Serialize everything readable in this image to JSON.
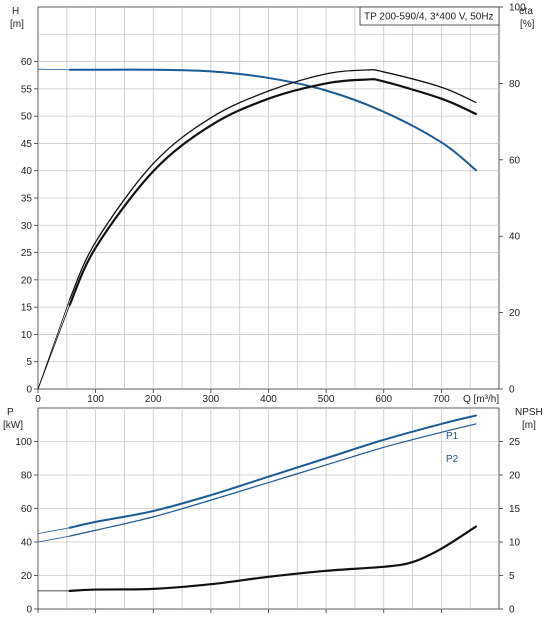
{
  "title": "TP 200-590/4, 3*400 V, 50Hz",
  "colors": {
    "blue": "#1a5a96",
    "black": "#111111"
  },
  "chart_data": [
    {
      "type": "line",
      "panel": "head-efficiency",
      "xlabel": "Q [m³/h]",
      "ylabel_left": [
        "H",
        "[m]"
      ],
      "ylabel_right": [
        "eta",
        "[%]"
      ],
      "xlim": [
        0,
        800
      ],
      "ylim_left": [
        0,
        70
      ],
      "ylim_right": [
        0,
        100
      ],
      "x_ticks": [
        0,
        100,
        200,
        300,
        400,
        500,
        600,
        700
      ],
      "y_ticks_left": [
        0,
        5,
        10,
        15,
        20,
        25,
        30,
        35,
        40,
        45,
        50,
        55,
        60
      ],
      "y_ticks_right": [
        0,
        20,
        40,
        60,
        80,
        100
      ],
      "grid": true,
      "series": [
        {
          "axis": "left",
          "color": "blue",
          "width": 2,
          "x": [
            0,
            55,
            100,
            200,
            300,
            400,
            500,
            600,
            700,
            760
          ],
          "y": [
            58.6,
            58.5,
            58.5,
            58.5,
            58.2,
            57,
            54.7,
            50.8,
            45.2,
            40.1
          ]
        },
        {
          "axis": "right",
          "color": "black",
          "width": 2.2,
          "x": [
            0,
            55,
            100,
            200,
            300,
            400,
            500,
            570,
            600,
            700,
            760
          ],
          "y": [
            0,
            22,
            37,
            57,
            69,
            76,
            80,
            81,
            80.5,
            76,
            72
          ]
        },
        {
          "axis": "right",
          "color": "black",
          "width": 1.3,
          "x": [
            0,
            55,
            100,
            200,
            300,
            400,
            500,
            570,
            600,
            700,
            760
          ],
          "y": [
            0,
            23.5,
            38.5,
            59,
            71,
            78,
            82.5,
            83.5,
            83,
            79,
            75
          ]
        }
      ]
    },
    {
      "type": "line",
      "panel": "power-npsh",
      "ylabel_left": [
        "P",
        "[kW]"
      ],
      "ylabel_right": [
        "NPSH",
        "[m]"
      ],
      "xlim": [
        0,
        800
      ],
      "ylim_left": [
        0,
        120
      ],
      "ylim_right": [
        0,
        30
      ],
      "y_ticks_left": [
        0,
        20,
        40,
        60,
        80,
        100
      ],
      "y_ticks_right": [
        0,
        5,
        10,
        15,
        20,
        25
      ],
      "grid": true,
      "series": [
        {
          "name": "P1",
          "axis": "left",
          "color": "blue",
          "width": 2,
          "x": [
            0,
            55,
            100,
            200,
            300,
            400,
            500,
            600,
            700,
            760
          ],
          "y": [
            45,
            48.5,
            52,
            58.5,
            68,
            79,
            90,
            101,
            110.5,
            115.5
          ]
        },
        {
          "name": "P2",
          "axis": "left",
          "color": "blue",
          "width": 1.2,
          "x": [
            0,
            55,
            100,
            200,
            300,
            400,
            500,
            600,
            700,
            760
          ],
          "y": [
            40,
            43.5,
            47,
            55,
            65,
            75.5,
            86,
            96.5,
            105.5,
            110.5
          ]
        },
        {
          "axis": "right",
          "color": "black",
          "width": 2.2,
          "x": [
            0,
            55,
            100,
            200,
            300,
            400,
            500,
            600,
            650,
            700,
            760
          ],
          "y": [
            2.7,
            2.7,
            2.9,
            3,
            3.7,
            4.8,
            5.7,
            6.3,
            7,
            9,
            12.3
          ]
        }
      ]
    }
  ]
}
